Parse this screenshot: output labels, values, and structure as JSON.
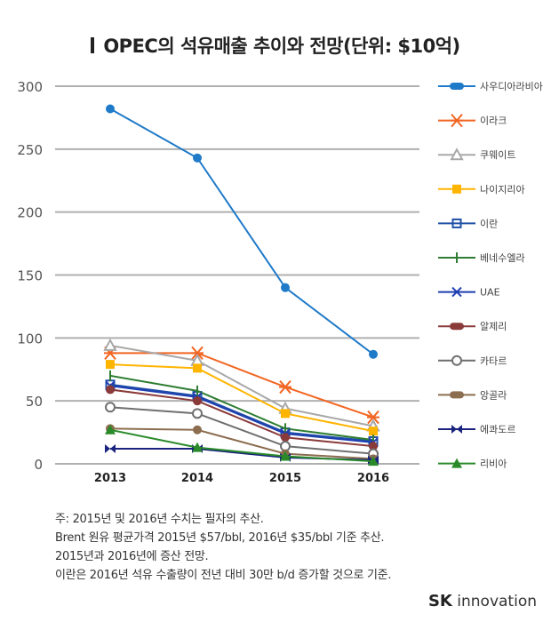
{
  "chart_data": {
    "type": "line",
    "title": "OPEC의 석유매출 추이와 전망(단위: $10억)",
    "xlabel": "",
    "ylabel": "",
    "x": [
      "2013",
      "2014",
      "2015",
      "2016"
    ],
    "ylim": [
      0,
      300
    ],
    "yticks": [
      "0",
      "50",
      "100",
      "150",
      "200",
      "250",
      "300"
    ],
    "grid": true,
    "legend": "right",
    "series": [
      {
        "name": "사우디아라비아",
        "values": [
          282,
          243,
          140,
          87
        ],
        "color": "#1f7ac8",
        "marker": "circle"
      },
      {
        "name": "이라크",
        "values": [
          88,
          88,
          61,
          37
        ],
        "color": "#f26522",
        "marker": "asterisk"
      },
      {
        "name": "쿠웨이트",
        "values": [
          94,
          82,
          44,
          30
        ],
        "color": "#a8a8a8",
        "marker": "triangle-open"
      },
      {
        "name": "나이지리아",
        "values": [
          79,
          76,
          40,
          26
        ],
        "color": "#ffb400",
        "marker": "square"
      },
      {
        "name": "이란",
        "values": [
          63,
          54,
          25,
          18
        ],
        "color": "#1f4fa8",
        "marker": "square-open"
      },
      {
        "name": "베네수엘라",
        "values": [
          70,
          58,
          28,
          19
        ],
        "color": "#2e7d32",
        "marker": "plus"
      },
      {
        "name": "UAE",
        "values": [
          62,
          53,
          24,
          17
        ],
        "color": "#1f3fb0",
        "marker": "x"
      },
      {
        "name": "알제리",
        "values": [
          59,
          50,
          21,
          14
        ],
        "color": "#8b3a3a",
        "marker": "circle"
      },
      {
        "name": "카타르",
        "values": [
          45,
          40,
          14,
          8
        ],
        "color": "#6f6f6f",
        "marker": "circle-open"
      },
      {
        "name": "앙골라",
        "values": [
          28,
          27,
          8,
          4
        ],
        "color": "#8c6d4f",
        "marker": "circle"
      },
      {
        "name": "에콰도르",
        "values": [
          12,
          12,
          5,
          3
        ],
        "color": "#1a237e",
        "marker": "bowtie"
      },
      {
        "name": "리비아",
        "values": [
          27,
          13,
          6,
          2
        ],
        "color": "#2a8a2a",
        "marker": "triangle"
      }
    ]
  },
  "notes": [
    "주: 2015년 및 2016년 수치는 필자의 추산.",
    "Brent 원유 평균가격 2015년 $57/bbl, 2016년 $35/bbl 기준 추산.",
    "2015년과 2016년에 증산 전망.",
    "이란은 2016년 석유 수출량이 전년 대비 30만 b/d 증가할 것으로 기준."
  ],
  "logo": {
    "brand": "SK",
    "text": "innovation"
  }
}
